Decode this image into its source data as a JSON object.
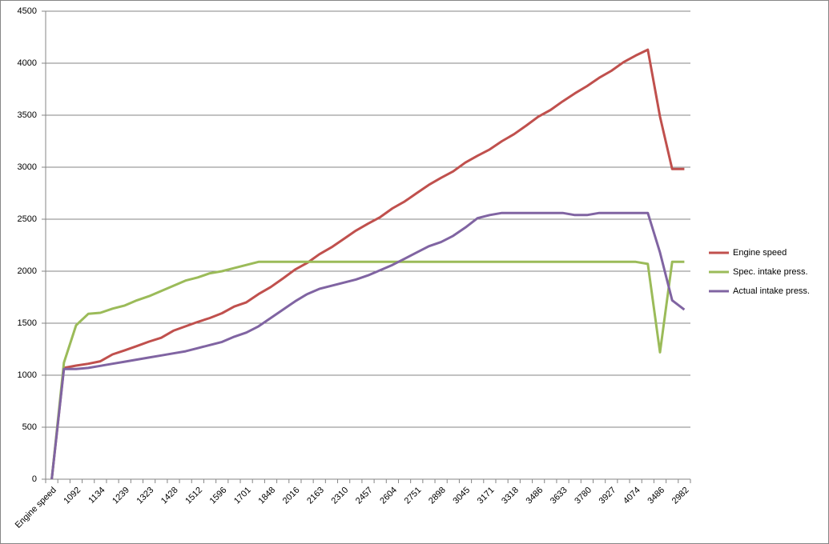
{
  "chart_data": {
    "type": "line",
    "categories": [
      "Engine speed",
      null,
      "1092",
      null,
      "1134",
      null,
      "1239",
      null,
      "1323",
      null,
      "1428",
      null,
      "1512",
      null,
      "1596",
      null,
      "1701",
      null,
      "1848",
      null,
      "2016",
      null,
      "2163",
      null,
      "2310",
      null,
      "2457",
      null,
      "2604",
      null,
      "2751",
      null,
      "2898",
      null,
      "3045",
      null,
      "3171",
      null,
      "3318",
      null,
      "3486",
      null,
      "3633",
      null,
      "3780",
      null,
      "3927",
      null,
      "4074",
      null,
      "3486",
      null,
      "2982"
    ],
    "series": [
      {
        "name": "Engine speed",
        "color": "#c0504d",
        "values": [
          0,
          1070,
          1092,
          1110,
          1134,
          1200,
          1239,
          1280,
          1323,
          1360,
          1428,
          1470,
          1512,
          1550,
          1596,
          1660,
          1701,
          1780,
          1848,
          1930,
          2016,
          2080,
          2163,
          2230,
          2310,
          2390,
          2457,
          2520,
          2604,
          2670,
          2751,
          2830,
          2898,
          2960,
          3045,
          3110,
          3171,
          3250,
          3318,
          3400,
          3486,
          3550,
          3633,
          3710,
          3780,
          3860,
          3927,
          4010,
          4074,
          4130,
          3486,
          2982,
          2982
        ]
      },
      {
        "name": "Spec. intake press.",
        "color": "#9bbb59",
        "values": [
          0,
          1120,
          1480,
          1590,
          1600,
          1640,
          1670,
          1720,
          1760,
          1810,
          1860,
          1910,
          1940,
          1980,
          2000,
          2030,
          2060,
          2090,
          2090,
          2090,
          2090,
          2090,
          2090,
          2090,
          2090,
          2090,
          2090,
          2090,
          2090,
          2090,
          2090,
          2090,
          2090,
          2090,
          2090,
          2090,
          2090,
          2090,
          2090,
          2090,
          2090,
          2090,
          2090,
          2090,
          2090,
          2090,
          2090,
          2090,
          2090,
          2070,
          1220,
          2090,
          2090
        ]
      },
      {
        "name": "Actual intake press.",
        "color": "#8064a2",
        "values": [
          0,
          1060,
          1060,
          1070,
          1090,
          1110,
          1130,
          1150,
          1170,
          1190,
          1210,
          1230,
          1260,
          1290,
          1320,
          1370,
          1410,
          1470,
          1550,
          1630,
          1710,
          1780,
          1830,
          1860,
          1890,
          1920,
          1960,
          2010,
          2060,
          2120,
          2180,
          2240,
          2280,
          2340,
          2420,
          2510,
          2540,
          2560,
          2560,
          2560,
          2560,
          2560,
          2560,
          2540,
          2540,
          2560,
          2560,
          2560,
          2560,
          2560,
          2180,
          1720,
          1630
        ]
      }
    ],
    "ylim": [
      0,
      4500
    ],
    "yticks": [
      0,
      500,
      1000,
      1500,
      2000,
      2500,
      3000,
      3500,
      4000,
      4500
    ],
    "grid": true,
    "legend": "right"
  }
}
